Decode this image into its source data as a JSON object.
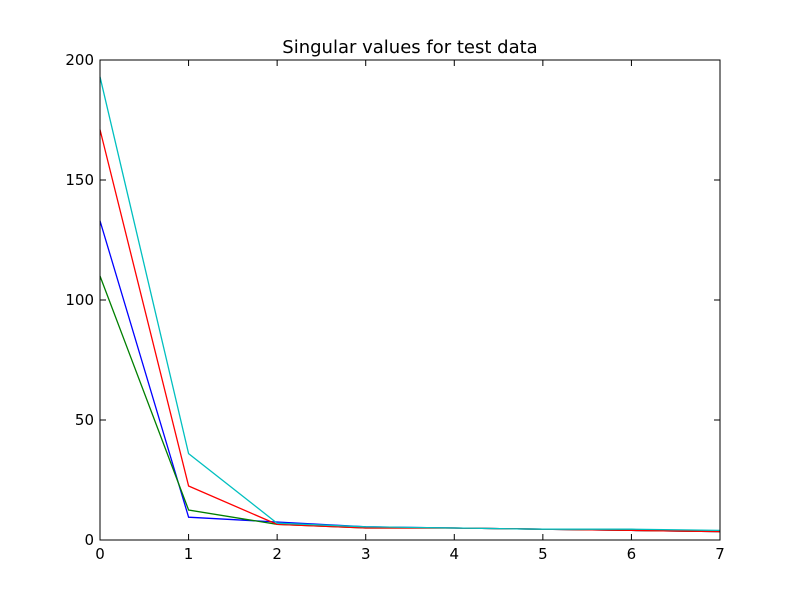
{
  "chart_data": {
    "type": "line",
    "title": "Singular values for test data",
    "xlabel": "",
    "ylabel": "",
    "xlim": [
      0,
      7
    ],
    "ylim": [
      0,
      200
    ],
    "x_ticks": [
      0,
      1,
      2,
      3,
      4,
      5,
      6,
      7
    ],
    "y_ticks": [
      0,
      50,
      100,
      150,
      200
    ],
    "grid": false,
    "x": [
      0,
      1,
      2,
      3,
      4,
      5,
      6,
      7
    ],
    "series": [
      {
        "color": "#0000ff",
        "values": [
          133,
          9.5,
          7.5,
          5.5,
          5.0,
          4.5,
          4.0,
          3.5
        ]
      },
      {
        "color": "#007f00",
        "values": [
          110,
          12.5,
          6.5,
          5.0,
          5.0,
          4.5,
          4.0,
          3.5
        ]
      },
      {
        "color": "#ff0000",
        "values": [
          171,
          22.5,
          6.5,
          5.0,
          5.0,
          4.5,
          4.0,
          3.5
        ]
      },
      {
        "color": "#00bfbf",
        "values": [
          193,
          36,
          7.0,
          5.5,
          5.0,
          4.5,
          4.5,
          4.0
        ]
      }
    ]
  }
}
